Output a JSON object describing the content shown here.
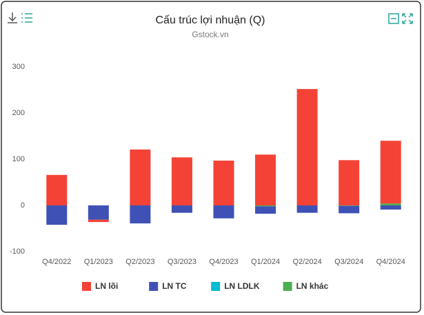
{
  "chart_data": {
    "type": "stacked-bar",
    "title": "Cấu trúc lợi nhuận (Q)",
    "subtitle": "Gstock.vn",
    "categories": [
      "Q4/2022",
      "Q1/2023",
      "Q2/2023",
      "Q3/2023",
      "Q4/2023",
      "Q1/2024",
      "Q2/2024",
      "Q3/2024",
      "Q4/2024"
    ],
    "series": [
      {
        "name": "LN lõi",
        "color": "#f44336",
        "values": [
          66,
          -5,
          121,
          104,
          97,
          110,
          252,
          98,
          136
        ]
      },
      {
        "name": "LN TC",
        "color": "#3f51b5",
        "values": [
          -42,
          -31,
          -39,
          -16,
          -28,
          -16,
          -16,
          -16,
          -9
        ]
      },
      {
        "name": "LN LDLK",
        "color": "#00bcd4",
        "values": [
          0,
          0,
          0,
          0,
          0,
          0,
          0,
          0,
          0
        ]
      },
      {
        "name": "LN khác",
        "color": "#4caf50",
        "values": [
          0,
          0,
          0,
          0,
          0,
          -2,
          0,
          -1,
          4
        ]
      }
    ],
    "ylim": [
      -100,
      300
    ],
    "yticks": [
      -100,
      0,
      100,
      200,
      300
    ],
    "grid": false,
    "legend": "bottom"
  }
}
